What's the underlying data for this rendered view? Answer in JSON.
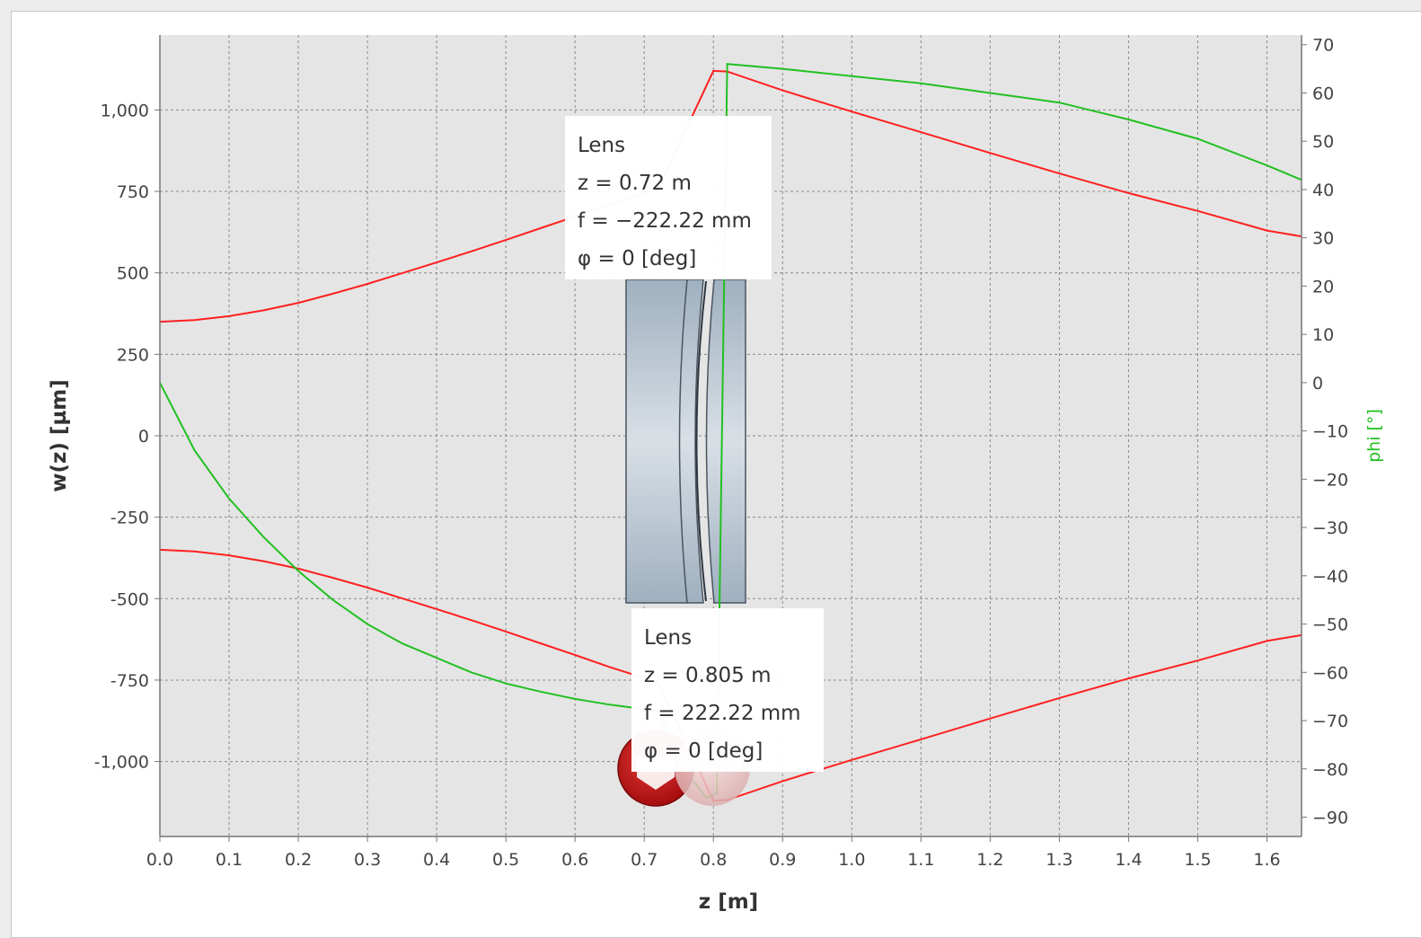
{
  "chart_data": {
    "type": "line",
    "xlabel": "z [m]",
    "ylabel": "w(z) [µm]",
    "y2label": "phi [°]",
    "xlim": [
      0.0,
      1.65
    ],
    "ylim": [
      -1230,
      1230
    ],
    "y2lim": [
      -94,
      72
    ],
    "x_ticks": [
      "0.0",
      "0.1",
      "0.2",
      "0.3",
      "0.4",
      "0.5",
      "0.6",
      "0.7",
      "0.8",
      "0.9",
      "1.0",
      "1.1",
      "1.2",
      "1.3",
      "1.4",
      "1.5",
      "1.6"
    ],
    "y_ticks": [
      "1,000",
      "750",
      "500",
      "250",
      "0",
      "-250",
      "-500",
      "-750",
      "-1,000"
    ],
    "y2_ticks": [
      "70",
      "60",
      "50",
      "40",
      "30",
      "20",
      "10",
      "0",
      "−10",
      "−20",
      "−30",
      "−40",
      "−50",
      "−60",
      "−70",
      "−80",
      "−90"
    ],
    "grid": true,
    "series": [
      {
        "axis": "left",
        "color": "#ff2020",
        "x": [
          0.0,
          0.05,
          0.1,
          0.15,
          0.2,
          0.25,
          0.3,
          0.35,
          0.4,
          0.45,
          0.5,
          0.55,
          0.6,
          0.65,
          0.72,
          0.8,
          0.82,
          0.9,
          1.0,
          1.1,
          1.2,
          1.3,
          1.4,
          1.5,
          1.6,
          1.65
        ],
        "y": [
          350,
          355,
          367,
          385,
          408,
          436,
          466,
          499,
          532,
          566,
          601,
          637,
          673,
          710,
          757,
          1120,
          1118,
          1060,
          995,
          932,
          868,
          805,
          745,
          690,
          630,
          612
        ]
      },
      {
        "axis": "left",
        "color": "#ff2020",
        "x": [
          0.0,
          0.05,
          0.1,
          0.15,
          0.2,
          0.25,
          0.3,
          0.35,
          0.4,
          0.45,
          0.5,
          0.55,
          0.6,
          0.65,
          0.72,
          0.8,
          0.82,
          0.9,
          1.0,
          1.1,
          1.2,
          1.3,
          1.4,
          1.5,
          1.6,
          1.65
        ],
        "y": [
          -350,
          -355,
          -367,
          -385,
          -408,
          -436,
          -466,
          -499,
          -532,
          -566,
          -601,
          -637,
          -673,
          -710,
          -757,
          -1120,
          -1118,
          -1060,
          -995,
          -932,
          -868,
          -805,
          -745,
          -690,
          -630,
          -612
        ]
      },
      {
        "axis": "right",
        "color": "#22c022",
        "x": [
          0.0,
          0.05,
          0.1,
          0.15,
          0.2,
          0.25,
          0.3,
          0.35,
          0.4,
          0.45,
          0.5,
          0.55,
          0.6,
          0.65,
          0.72,
          0.76,
          0.79,
          0.805,
          0.82,
          0.9,
          1.0,
          1.1,
          1.2,
          1.3,
          1.4,
          1.5,
          1.6,
          1.65
        ],
        "y": [
          0,
          -14,
          -24,
          -32,
          -39,
          -45,
          -50,
          -54,
          -57,
          -60,
          -62.3,
          -64,
          -65.5,
          -66.7,
          -68,
          -80.5,
          -86,
          -85,
          66,
          65,
          63.5,
          62,
          60,
          58,
          54.5,
          50.5,
          45,
          42
        ]
      }
    ],
    "annotations": [
      {
        "title": "Lens",
        "lines": [
          "z = 0.72 m",
          "f = −222.22 mm",
          "φ = 0 [deg]"
        ]
      },
      {
        "title": "Lens",
        "lines": [
          "z = 0.805 m",
          "f = 222.22 mm",
          "φ = 0 [deg]"
        ]
      }
    ]
  }
}
